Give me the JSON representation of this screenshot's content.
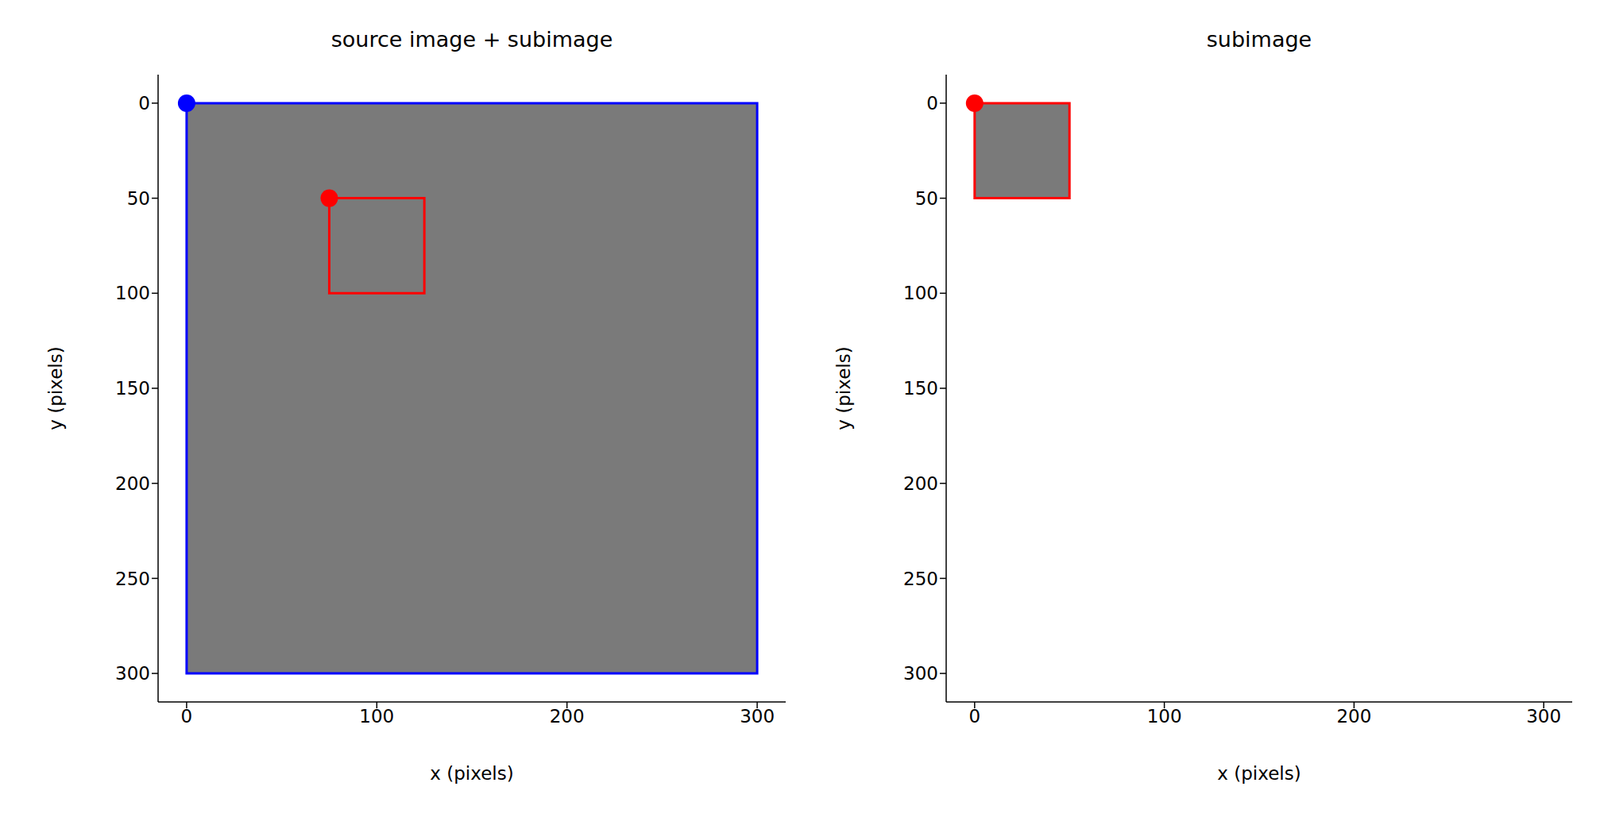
{
  "chart_data": [
    {
      "type": "scatter",
      "title": "source image + subimage",
      "x_label": "x (pixels)",
      "y_label": "y (pixels)",
      "xlim": [
        -15,
        315
      ],
      "ylim": [
        315,
        -15
      ],
      "xticks": [
        0,
        100,
        200,
        300
      ],
      "yticks": [
        0,
        50,
        100,
        150,
        200,
        250,
        300
      ],
      "rectangles": [
        {
          "x": [
            0,
            300
          ],
          "y": [
            0,
            300
          ],
          "color": "#0000ff"
        },
        {
          "x": [
            75,
            125
          ],
          "y": [
            50,
            100
          ],
          "color": "#ff0000"
        }
      ],
      "points": [
        {
          "x": 0,
          "y": 0,
          "color": "#0000ff"
        },
        {
          "x": 75,
          "y": 50,
          "color": "#ff0000"
        }
      ]
    },
    {
      "type": "scatter",
      "title": "subimage",
      "x_label": "x (pixels)",
      "y_label": "y (pixels)",
      "xlim": [
        -15,
        315
      ],
      "ylim": [
        315,
        -15
      ],
      "xticks": [
        0,
        100,
        200,
        300
      ],
      "yticks": [
        0,
        50,
        100,
        150,
        200,
        250,
        300
      ],
      "rectangles": [
        {
          "x": [
            0,
            50
          ],
          "y": [
            0,
            50
          ],
          "color": "#ff0000"
        }
      ],
      "points": [
        {
          "x": 0,
          "y": 0,
          "color": "#ff0000"
        }
      ]
    }
  ]
}
